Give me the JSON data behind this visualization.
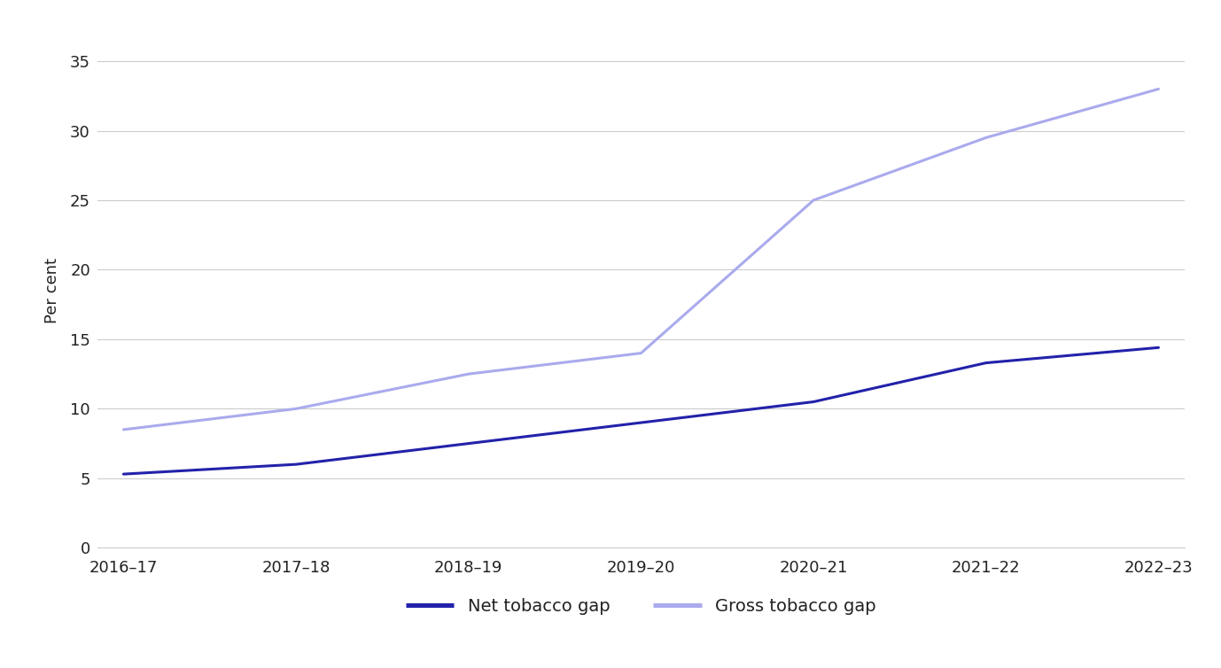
{
  "x_labels": [
    "2016–17",
    "2017–18",
    "2018–19",
    "2019–20",
    "2020–21",
    "2021–22",
    "2022–23"
  ],
  "x_positions": [
    0,
    1,
    2,
    3,
    4,
    5,
    6
  ],
  "net_tobacco_gap": [
    5.3,
    6.0,
    7.5,
    9.0,
    10.5,
    13.3,
    14.4
  ],
  "gross_tobacco_gap": [
    8.5,
    10.0,
    12.5,
    14.0,
    25.0,
    29.5,
    33.0
  ],
  "net_color": "#2222aa",
  "gross_color": "#aaaaee",
  "net_label": "Net tobacco gap",
  "gross_label": "Gross tobacco gap",
  "ylabel": "Per cent",
  "ylim": [
    0,
    37
  ],
  "yticks": [
    0,
    5,
    10,
    15,
    20,
    25,
    30,
    35
  ],
  "line_width": 2.2,
  "background_color": "#ffffff",
  "grid_color": "#cccccc",
  "legend_fontsize": 14,
  "ylabel_fontsize": 13,
  "tick_fontsize": 13
}
